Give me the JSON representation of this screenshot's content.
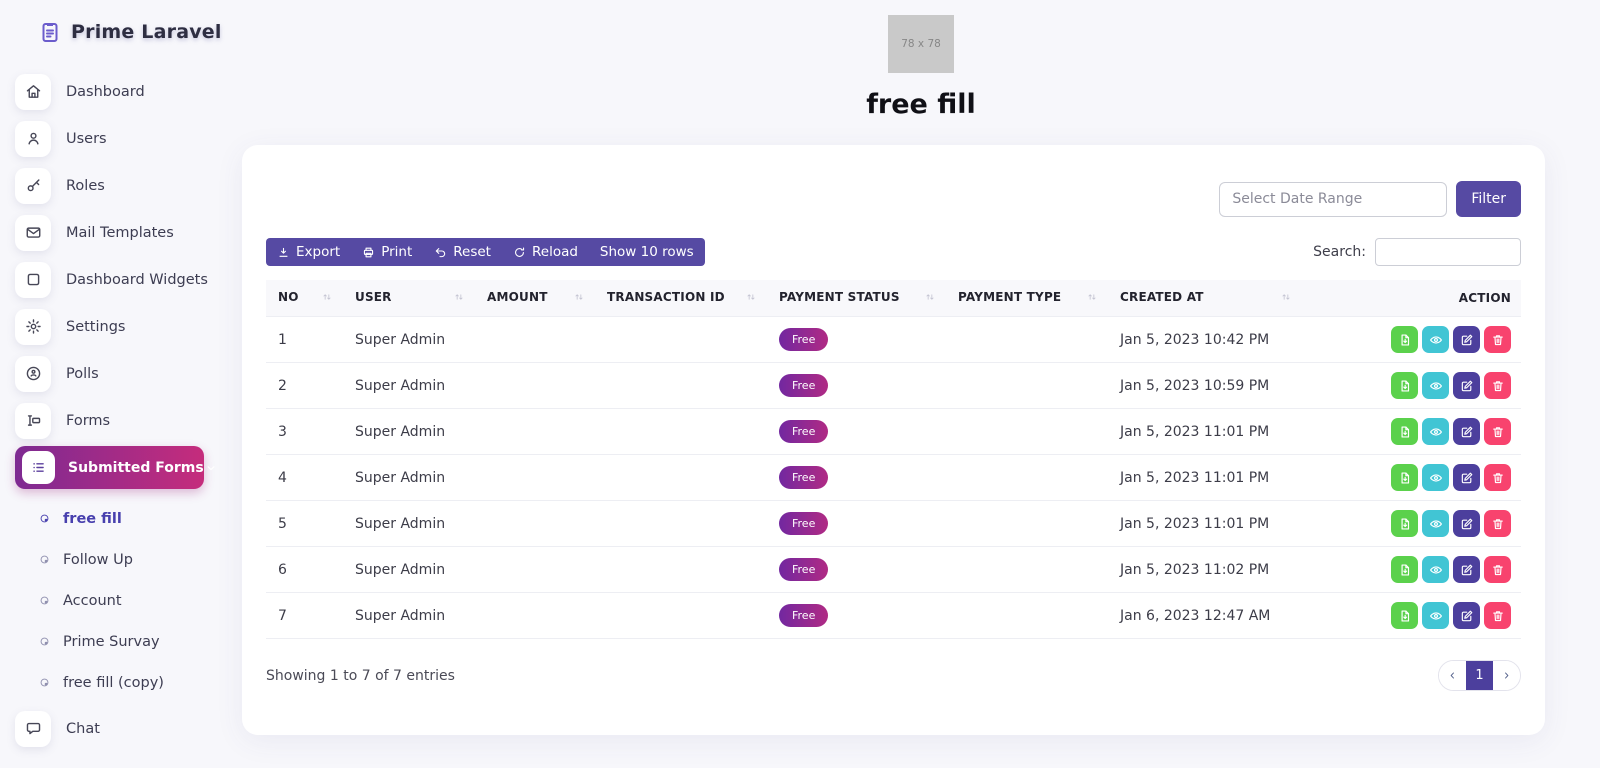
{
  "brand": {
    "name": "Prime Laravel",
    "icon": "clipboard-icon"
  },
  "sidebar": {
    "items": [
      {
        "label": "Dashboard",
        "icon": "home-icon",
        "active": false
      },
      {
        "label": "Users",
        "icon": "user-icon",
        "active": false
      },
      {
        "label": "Roles",
        "icon": "key-icon",
        "active": false
      },
      {
        "label": "Mail Templates",
        "icon": "envelope-icon",
        "active": false
      },
      {
        "label": "Dashboard Widgets",
        "icon": "square-icon",
        "active": false
      },
      {
        "label": "Settings",
        "icon": "gear-icon",
        "active": false
      },
      {
        "label": "Polls",
        "icon": "poll-icon",
        "active": false
      },
      {
        "label": "Forms",
        "icon": "form-input-icon",
        "active": false
      },
      {
        "label": "Submitted Forms",
        "icon": "list-icon",
        "active": true,
        "expanded": true
      }
    ],
    "submenu": [
      {
        "label": "free fill",
        "active": true
      },
      {
        "label": "Follow Up",
        "active": false
      },
      {
        "label": "Account",
        "active": false
      },
      {
        "label": "Prime Survay",
        "active": false
      },
      {
        "label": "free fill (copy)",
        "active": false
      }
    ],
    "chat": {
      "label": "Chat",
      "icon": "chat-icon"
    }
  },
  "header": {
    "image_placeholder_text": "78 x 78",
    "title": "free fill"
  },
  "filter": {
    "date_range_placeholder": "Select Date Range",
    "button_label": "Filter"
  },
  "toolbar": {
    "buttons": [
      {
        "label": "Export",
        "icon": "download-icon"
      },
      {
        "label": "Print",
        "icon": "printer-icon"
      },
      {
        "label": "Reset",
        "icon": "undo-icon"
      },
      {
        "label": "Reload",
        "icon": "refresh-icon"
      },
      {
        "label": "Show 10 rows",
        "icon": null
      }
    ]
  },
  "search": {
    "label": "Search:",
    "value": ""
  },
  "table": {
    "columns": [
      {
        "label": "NO",
        "sortable": true
      },
      {
        "label": "USER",
        "sortable": true
      },
      {
        "label": "AMOUNT",
        "sortable": true
      },
      {
        "label": "TRANSACTION ID",
        "sortable": true
      },
      {
        "label": "PAYMENT STATUS",
        "sortable": true
      },
      {
        "label": "PAYMENT TYPE",
        "sortable": true
      },
      {
        "label": "CREATED AT",
        "sortable": true
      },
      {
        "label": "ACTION",
        "sortable": false
      }
    ],
    "rows": [
      {
        "no": "1",
        "user": "Super Admin",
        "amount": "",
        "transaction_id": "",
        "payment_status": "Free",
        "payment_type": "",
        "created_at": "Jan 5, 2023 10:42 PM"
      },
      {
        "no": "2",
        "user": "Super Admin",
        "amount": "",
        "transaction_id": "",
        "payment_status": "Free",
        "payment_type": "",
        "created_at": "Jan 5, 2023 10:59 PM"
      },
      {
        "no": "3",
        "user": "Super Admin",
        "amount": "",
        "transaction_id": "",
        "payment_status": "Free",
        "payment_type": "",
        "created_at": "Jan 5, 2023 11:01 PM"
      },
      {
        "no": "4",
        "user": "Super Admin",
        "amount": "",
        "transaction_id": "",
        "payment_status": "Free",
        "payment_type": "",
        "created_at": "Jan 5, 2023 11:01 PM"
      },
      {
        "no": "5",
        "user": "Super Admin",
        "amount": "",
        "transaction_id": "",
        "payment_status": "Free",
        "payment_type": "",
        "created_at": "Jan 5, 2023 11:01 PM"
      },
      {
        "no": "6",
        "user": "Super Admin",
        "amount": "",
        "transaction_id": "",
        "payment_status": "Free",
        "payment_type": "",
        "created_at": "Jan 5, 2023 11:02 PM"
      },
      {
        "no": "7",
        "user": "Super Admin",
        "amount": "",
        "transaction_id": "",
        "payment_status": "Free",
        "payment_type": "",
        "created_at": "Jan 6, 2023 12:47 AM"
      }
    ],
    "row_actions": [
      {
        "name": "file-download",
        "icon": "file-download-icon",
        "color": "#5bd14c"
      },
      {
        "name": "view",
        "icon": "eye-icon",
        "color": "#41c5d4"
      },
      {
        "name": "edit",
        "icon": "edit-icon",
        "color": "#4c3f9d"
      },
      {
        "name": "delete",
        "icon": "trash-icon",
        "color": "#f8436e"
      }
    ]
  },
  "footer": {
    "showing_text": "Showing 1 to 7 of 7 entries",
    "pagination": {
      "current": "1"
    }
  },
  "colors": {
    "accent_purple": "#564aa3",
    "active_gradient_start": "#7e2a92",
    "active_gradient_end": "#c52c7c",
    "badge_gradient_start": "#7228a0",
    "badge_gradient_end": "#b02a84",
    "action_green": "#5bd14c",
    "action_teal": "#41c5d4",
    "action_indigo": "#4c3f9d",
    "action_pink": "#f8436e",
    "pagination_active": "#4c3f9d"
  }
}
